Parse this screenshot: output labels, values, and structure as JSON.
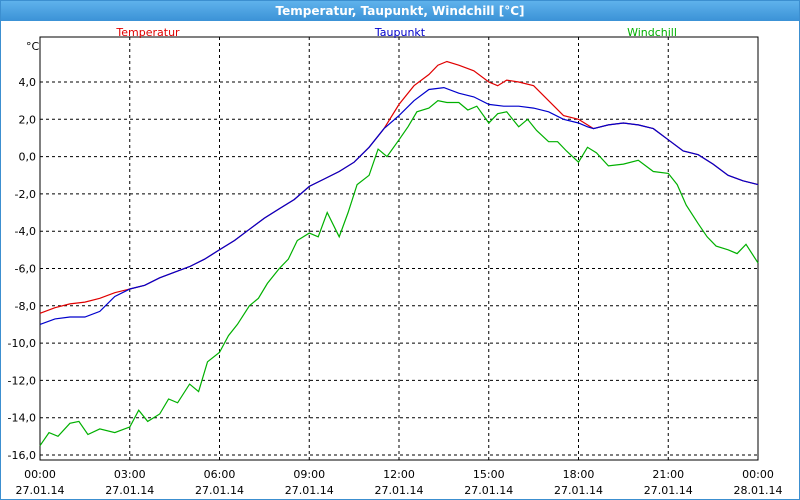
{
  "window": {
    "title": "Temperatur, Taupunkt, Windchill [°C]"
  },
  "colors": {
    "titlebar": "#3b92d6",
    "temperatur": "#e00000",
    "taupunkt": "#0000cc",
    "windchill": "#00b000",
    "grid": "#000000"
  },
  "chart_data": {
    "type": "line",
    "title": "Temperatur, Taupunkt, Windchill [°C]",
    "ylabel": "°C",
    "ylim": [
      -16,
      5.8
    ],
    "xlim": [
      0,
      24
    ],
    "grid": true,
    "legend_placement": "top",
    "y_ticks": [
      {
        "value": 4,
        "label": "4,0"
      },
      {
        "value": 2,
        "label": "2,0"
      },
      {
        "value": 0,
        "label": "0,0"
      },
      {
        "value": -2,
        "label": "-2,0"
      },
      {
        "value": -4,
        "label": "-4,0"
      },
      {
        "value": -6,
        "label": "-6,0"
      },
      {
        "value": -8,
        "label": "-8,0"
      },
      {
        "value": -10,
        "label": "-10,0"
      },
      {
        "value": -12,
        "label": "-12,0"
      },
      {
        "value": -14,
        "label": "-14,0"
      },
      {
        "value": -16,
        "label": "-16,0"
      }
    ],
    "x_ticks": [
      {
        "value": 0,
        "time": "00:00",
        "date": "27.01.14"
      },
      {
        "value": 3,
        "time": "03:00",
        "date": "27.01.14"
      },
      {
        "value": 6,
        "time": "06:00",
        "date": "27.01.14"
      },
      {
        "value": 9,
        "time": "09:00",
        "date": "27.01.14"
      },
      {
        "value": 12,
        "time": "12:00",
        "date": "27.01.14"
      },
      {
        "value": 15,
        "time": "15:00",
        "date": "27.01.14"
      },
      {
        "value": 18,
        "time": "18:00",
        "date": "27.01.14"
      },
      {
        "value": 21,
        "time": "21:00",
        "date": "27.01.14"
      },
      {
        "value": 24,
        "time": "00:00",
        "date": "28.01.14"
      }
    ],
    "series": [
      {
        "name": "Temperatur",
        "color": "#e00000",
        "points": [
          [
            0,
            -8.4
          ],
          [
            0.5,
            -8.1
          ],
          [
            1,
            -7.9
          ],
          [
            1.5,
            -7.8
          ],
          [
            2,
            -7.6
          ],
          [
            2.5,
            -7.3
          ],
          [
            3,
            -7.1
          ],
          [
            3.5,
            -6.9
          ],
          [
            4,
            -6.5
          ],
          [
            4.5,
            -6.2
          ],
          [
            5,
            -5.9
          ],
          [
            5.5,
            -5.5
          ],
          [
            6,
            -5.0
          ],
          [
            6.5,
            -4.5
          ],
          [
            7,
            -3.9
          ],
          [
            7.5,
            -3.3
          ],
          [
            8,
            -2.8
          ],
          [
            8.5,
            -2.3
          ],
          [
            9,
            -1.6
          ],
          [
            9.5,
            -1.2
          ],
          [
            10,
            -0.8
          ],
          [
            10.5,
            -0.3
          ],
          [
            11,
            0.5
          ],
          [
            11.5,
            1.5
          ],
          [
            12,
            2.8
          ],
          [
            12.5,
            3.8
          ],
          [
            13,
            4.4
          ],
          [
            13.3,
            4.9
          ],
          [
            13.6,
            5.1
          ],
          [
            14,
            4.9
          ],
          [
            14.5,
            4.6
          ],
          [
            15,
            4.0
          ],
          [
            15.3,
            3.8
          ],
          [
            15.6,
            4.1
          ],
          [
            16,
            4.0
          ],
          [
            16.5,
            3.8
          ],
          [
            17,
            3.0
          ],
          [
            17.5,
            2.2
          ],
          [
            18,
            2.0
          ],
          [
            18.3,
            1.7
          ],
          [
            18.5,
            1.5
          ],
          [
            19,
            1.7
          ],
          [
            19.5,
            1.8
          ],
          [
            20,
            1.7
          ],
          [
            20.5,
            1.5
          ],
          [
            21,
            0.9
          ],
          [
            21.5,
            0.3
          ],
          [
            22,
            0.1
          ],
          [
            22.5,
            -0.4
          ],
          [
            23,
            -1.0
          ],
          [
            23.5,
            -1.3
          ],
          [
            24,
            -1.5
          ]
        ]
      },
      {
        "name": "Taupunkt",
        "color": "#0000cc",
        "points": [
          [
            0,
            -9.0
          ],
          [
            0.5,
            -8.7
          ],
          [
            1,
            -8.6
          ],
          [
            1.5,
            -8.6
          ],
          [
            2,
            -8.3
          ],
          [
            2.5,
            -7.5
          ],
          [
            3,
            -7.1
          ],
          [
            3.5,
            -6.9
          ],
          [
            4,
            -6.5
          ],
          [
            4.5,
            -6.2
          ],
          [
            5,
            -5.9
          ],
          [
            5.5,
            -5.5
          ],
          [
            6,
            -5.0
          ],
          [
            6.5,
            -4.5
          ],
          [
            7,
            -3.9
          ],
          [
            7.5,
            -3.3
          ],
          [
            8,
            -2.8
          ],
          [
            8.5,
            -2.3
          ],
          [
            9,
            -1.6
          ],
          [
            9.5,
            -1.2
          ],
          [
            10,
            -0.8
          ],
          [
            10.5,
            -0.3
          ],
          [
            11,
            0.5
          ],
          [
            11.5,
            1.5
          ],
          [
            12,
            2.2
          ],
          [
            12.5,
            3.0
          ],
          [
            13,
            3.6
          ],
          [
            13.5,
            3.7
          ],
          [
            14,
            3.4
          ],
          [
            14.5,
            3.2
          ],
          [
            15,
            2.8
          ],
          [
            15.5,
            2.7
          ],
          [
            16,
            2.7
          ],
          [
            16.5,
            2.6
          ],
          [
            17,
            2.4
          ],
          [
            17.5,
            2.0
          ],
          [
            18,
            1.8
          ],
          [
            18.3,
            1.6
          ],
          [
            18.5,
            1.5
          ],
          [
            19,
            1.7
          ],
          [
            19.5,
            1.8
          ],
          [
            20,
            1.7
          ],
          [
            20.5,
            1.5
          ],
          [
            21,
            0.9
          ],
          [
            21.5,
            0.3
          ],
          [
            22,
            0.1
          ],
          [
            22.5,
            -0.4
          ],
          [
            23,
            -1.0
          ],
          [
            23.5,
            -1.3
          ],
          [
            24,
            -1.5
          ]
        ]
      },
      {
        "name": "Windchill",
        "color": "#00b000",
        "points": [
          [
            0,
            -15.5
          ],
          [
            0.3,
            -14.8
          ],
          [
            0.6,
            -15.0
          ],
          [
            1,
            -14.3
          ],
          [
            1.3,
            -14.2
          ],
          [
            1.6,
            -14.9
          ],
          [
            2,
            -14.6
          ],
          [
            2.5,
            -14.8
          ],
          [
            3,
            -14.5
          ],
          [
            3.3,
            -13.6
          ],
          [
            3.6,
            -14.2
          ],
          [
            4,
            -13.8
          ],
          [
            4.3,
            -13.0
          ],
          [
            4.6,
            -13.2
          ],
          [
            5,
            -12.2
          ],
          [
            5.3,
            -12.6
          ],
          [
            5.6,
            -11.0
          ],
          [
            6,
            -10.5
          ],
          [
            6.3,
            -9.6
          ],
          [
            6.6,
            -9.0
          ],
          [
            7,
            -8.0
          ],
          [
            7.3,
            -7.6
          ],
          [
            7.6,
            -6.8
          ],
          [
            8,
            -6.0
          ],
          [
            8.3,
            -5.5
          ],
          [
            8.6,
            -4.5
          ],
          [
            9,
            -4.1
          ],
          [
            9.3,
            -4.3
          ],
          [
            9.6,
            -3.0
          ],
          [
            10,
            -4.3
          ],
          [
            10.3,
            -3.0
          ],
          [
            10.6,
            -1.5
          ],
          [
            11,
            -1.0
          ],
          [
            11.3,
            0.4
          ],
          [
            11.6,
            0.0
          ],
          [
            12,
            0.9
          ],
          [
            12.3,
            1.6
          ],
          [
            12.6,
            2.4
          ],
          [
            13,
            2.6
          ],
          [
            13.3,
            3.0
          ],
          [
            13.6,
            2.9
          ],
          [
            14,
            2.9
          ],
          [
            14.3,
            2.5
          ],
          [
            14.6,
            2.7
          ],
          [
            15,
            1.8
          ],
          [
            15.3,
            2.3
          ],
          [
            15.6,
            2.4
          ],
          [
            16,
            1.6
          ],
          [
            16.3,
            2.0
          ],
          [
            16.6,
            1.4
          ],
          [
            17,
            0.8
          ],
          [
            17.3,
            0.8
          ],
          [
            17.6,
            0.3
          ],
          [
            18,
            -0.3
          ],
          [
            18.3,
            0.5
          ],
          [
            18.6,
            0.2
          ],
          [
            19,
            -0.5
          ],
          [
            19.5,
            -0.4
          ],
          [
            20,
            -0.2
          ],
          [
            20.5,
            -0.8
          ],
          [
            21,
            -0.9
          ],
          [
            21.3,
            -1.5
          ],
          [
            21.6,
            -2.6
          ],
          [
            22,
            -3.6
          ],
          [
            22.3,
            -4.3
          ],
          [
            22.6,
            -4.8
          ],
          [
            23,
            -5.0
          ],
          [
            23.3,
            -5.2
          ],
          [
            23.6,
            -4.7
          ],
          [
            24,
            -5.7
          ]
        ]
      }
    ]
  }
}
